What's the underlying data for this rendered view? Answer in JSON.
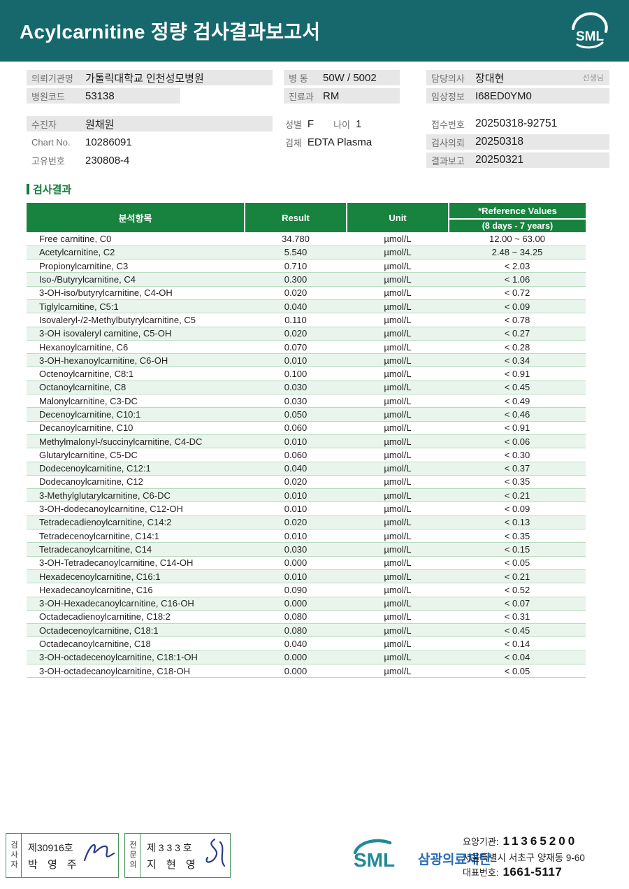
{
  "header": {
    "title": "Acylcarnitine 정량 검사결과보고서",
    "logo_text": "SML"
  },
  "info": {
    "requesting_org_label": "의뢰기관명",
    "requesting_org": "가톨릭대학교 인천성모병원",
    "hospital_code_label": "병원코드",
    "hospital_code": "53138",
    "patient_label": "수진자",
    "patient_name": "원채원",
    "chart_no_label": "Chart No.",
    "chart_no": "10286091",
    "unique_no_label": "고유번호",
    "unique_no": "230808-4",
    "ward_label": "병 동",
    "ward": "50W / 5002",
    "department_label": "진료과",
    "department": "RM",
    "sex_label": "성별",
    "sex": "F",
    "age_label": "나이",
    "age": "1",
    "specimen_label": "검체",
    "specimen": "EDTA Plasma",
    "doctor_label": "담당의사",
    "doctor": "장대현",
    "doctor_suffix": "선생님",
    "clinical_info_label": "임상정보",
    "clinical_info": "I68ED0YM0",
    "receipt_no_label": "접수번호",
    "receipt_no": "20250318-92751",
    "request_date_label": "검사의뢰",
    "request_date": "20250318",
    "report_date_label": "결과보고",
    "report_date": "20250321"
  },
  "results": {
    "section_title": "검사결과",
    "columns": {
      "analyte": "분석항목",
      "result": "Result",
      "unit": "Unit",
      "reference": "*Reference Values",
      "reference_sub": "(8 days - 7 years)"
    },
    "rows": [
      [
        "Free carnitine, C0",
        "34.780",
        "µmol/L",
        "12.00 ~ 63.00"
      ],
      [
        "Acetylcarnitine, C2",
        "5.540",
        "µmol/L",
        "2.48 ~ 34.25"
      ],
      [
        "Propionylcarnitine, C3",
        "0.710",
        "µmol/L",
        "< 2.03"
      ],
      [
        "Iso-/Butyrylcarnitine, C4",
        "0.300",
        "µmol/L",
        "< 1.06"
      ],
      [
        "3-OH-iso/butyrylcarnitine, C4-OH",
        "0.020",
        "µmol/L",
        "< 0.72"
      ],
      [
        "Tiglylcarnitine, C5:1",
        "0.040",
        "µmol/L",
        "< 0.09"
      ],
      [
        "Isovaleryl-/2-Methylbutyrylcarnitine, C5",
        "0.110",
        "µmol/L",
        "< 0.78"
      ],
      [
        "3-OH isovaleryl carnitine, C5-OH",
        "0.020",
        "µmol/L",
        "< 0.27"
      ],
      [
        "Hexanoylcarnitine, C6",
        "0.070",
        "µmol/L",
        "< 0.28"
      ],
      [
        "3-OH-hexanoylcarnitine, C6-OH",
        "0.010",
        "µmol/L",
        "< 0.34"
      ],
      [
        "Octenoylcarnitine, C8:1",
        "0.100",
        "µmol/L",
        "< 0.91"
      ],
      [
        "Octanoylcarnitine, C8",
        "0.030",
        "µmol/L",
        "< 0.45"
      ],
      [
        "Malonylcarnitine, C3-DC",
        "0.030",
        "µmol/L",
        "< 0.49"
      ],
      [
        "Decenoylcarnitine, C10:1",
        "0.050",
        "µmol/L",
        "< 0.46"
      ],
      [
        "Decanoylcarnitine, C10",
        "0.060",
        "µmol/L",
        "< 0.91"
      ],
      [
        "Methylmalonyl-/succinylcarnitine, C4-DC",
        "0.010",
        "µmol/L",
        "< 0.06"
      ],
      [
        "Glutarylcarnitine, C5-DC",
        "0.060",
        "µmol/L",
        "< 0.30"
      ],
      [
        "Dodecenoylcarnitine, C12:1",
        "0.040",
        "µmol/L",
        "< 0.37"
      ],
      [
        "Dodecanoylcarnitine, C12",
        "0.020",
        "µmol/L",
        "< 0.35"
      ],
      [
        "3-Methylglutarylcarnitine, C6-DC",
        "0.010",
        "µmol/L",
        "< 0.21"
      ],
      [
        "3-OH-dodecanoylcarnitine, C12-OH",
        "0.010",
        "µmol/L",
        "< 0.09"
      ],
      [
        "Tetradecadienoylcarnitine, C14:2",
        "0.020",
        "µmol/L",
        "< 0.13"
      ],
      [
        "Tetradecenoylcarnitine, C14:1",
        "0.010",
        "µmol/L",
        "< 0.35"
      ],
      [
        "Tetradecanoylcarnitine, C14",
        "0.030",
        "µmol/L",
        "< 0.15"
      ],
      [
        "3-OH-Tetradecanoylcarnitine, C14-OH",
        "0.000",
        "µmol/L",
        "< 0.05"
      ],
      [
        "Hexadecenoylcarnitine, C16:1",
        "0.010",
        "µmol/L",
        "< 0.21"
      ],
      [
        "Hexadecanoylcarnitine, C16",
        "0.090",
        "µmol/L",
        "< 0.52"
      ],
      [
        "3-OH-Hexadecanoylcarnitine, C16-OH",
        "0.000",
        "µmol/L",
        "< 0.07"
      ],
      [
        "Octadecadienoylcarnitine, C18:2",
        "0.080",
        "µmol/L",
        "< 0.31"
      ],
      [
        "Octadecenoylcarnitine, C18:1",
        "0.080",
        "µmol/L",
        "< 0.45"
      ],
      [
        "Octadecanoylcarnitine, C18",
        "0.040",
        "µmol/L",
        "< 0.14"
      ],
      [
        "3-OH-octadecenoylcarnitine, C18:1-OH",
        "0.000",
        "µmol/L",
        "< 0.04"
      ],
      [
        "3-OH-octadecanoylcarnitine, C18-OH",
        "0.000",
        "µmol/L",
        "< 0.05"
      ]
    ]
  },
  "footer": {
    "tester": {
      "role": "검사자",
      "cert_no": "제30916호",
      "name": "박 영 주"
    },
    "specialist": {
      "role": "전문의",
      "cert_no": "제 3 3 3 호",
      "name": "지 현 영"
    },
    "org_abbr": "SML",
    "org_name": "삼광의료재단",
    "care_org_label": "요양기관:",
    "care_org_no": "11365200",
    "address": "서울특별시 서초구 양재동 9-60",
    "tel_label": "대표번호:",
    "tel": "1661-5117"
  }
}
